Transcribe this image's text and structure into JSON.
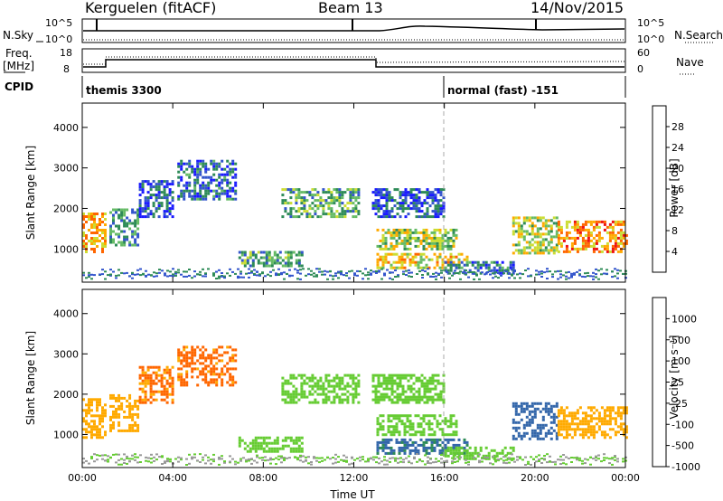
{
  "header": {
    "radar": "Kerguelen (fitACF)",
    "beam": "Beam 13",
    "date": "14/Nov/2015"
  },
  "top_panels": {
    "nsky_label": "N.Sky",
    "nsky_ticks": [
      "10^5",
      "10^0"
    ],
    "nsearch_label": "N.Search",
    "nsearch_ticks": [
      "10^5",
      "10^0"
    ],
    "freq_label": "Freq.",
    "freq_unit": "[MHz]",
    "freq_ticks": [
      "18",
      "8"
    ],
    "nave_label": "Nave",
    "nave_ticks": [
      "60",
      "0"
    ],
    "cpid_label": "CPID",
    "cpid_segments": [
      "themis 3300",
      "normal (fast) -151"
    ]
  },
  "colors": {
    "power": [
      "#1a1aff",
      "#3355cc",
      "#2e8b57",
      "#66bb66",
      "#ccdd33",
      "#ffaa00",
      "#ff6600",
      "#ee1111"
    ],
    "velocity": [
      "#ee1111",
      "#ff6600",
      "#ffaa00",
      "#c8c8c0",
      "#66cc33",
      "#2e8b57",
      "#3366aa",
      "#2222cc"
    ],
    "ground": "#999999"
  },
  "chart_data": [
    {
      "type": "heatmap",
      "title": "",
      "xlabel": "",
      "ylabel": "Slant Range [km]",
      "colorbar_label": "Power [dB]",
      "colorbar_ticks": [
        "4",
        "8",
        "12",
        "16",
        "20",
        "24",
        "28"
      ],
      "colorbar_range": [
        0,
        32
      ],
      "ylim": [
        180,
        4600
      ],
      "yticks": [
        "1000",
        "2000",
        "3000",
        "4000"
      ],
      "xlim": [
        0,
        24
      ],
      "xticks": [
        "00:00",
        "04:00",
        "08:00",
        "12:00",
        "16:00",
        "20:00",
        "00:00"
      ],
      "grid": false,
      "regions": [
        {
          "t": [
            0.0,
            1.0
          ],
          "r": [
            900,
            1900
          ],
          "v": 22
        },
        {
          "t": [
            1.2,
            2.5
          ],
          "r": [
            1100,
            2000
          ],
          "v": 10
        },
        {
          "t": [
            2.5,
            4.0
          ],
          "r": [
            1800,
            2700
          ],
          "v": 6
        },
        {
          "t": [
            4.2,
            6.8
          ],
          "r": [
            2200,
            3200
          ],
          "v": 7
        },
        {
          "t": [
            6.9,
            9.7
          ],
          "r": [
            600,
            950
          ],
          "v": 12
        },
        {
          "t": [
            8.8,
            12.2
          ],
          "r": [
            1800,
            2500
          ],
          "v": 12
        },
        {
          "t": [
            12.8,
            16.0
          ],
          "r": [
            1800,
            2500
          ],
          "v": 6
        },
        {
          "t": [
            13.0,
            16.5
          ],
          "r": [
            1000,
            1500
          ],
          "v": 16
        },
        {
          "t": [
            13.0,
            17.0
          ],
          "r": [
            500,
            900
          ],
          "v": 20
        },
        {
          "t": [
            16.0,
            19.0
          ],
          "r": [
            400,
            700
          ],
          "v": 8
        },
        {
          "t": [
            19.0,
            21.0
          ],
          "r": [
            900,
            1800
          ],
          "v": 17
        },
        {
          "t": [
            21.0,
            24.0
          ],
          "r": [
            900,
            1700
          ],
          "v": 24
        }
      ]
    },
    {
      "type": "heatmap",
      "title": "",
      "xlabel": "Time UT",
      "ylabel": "Slant Range [km]",
      "colorbar_label": "Velocity [m s⁻¹]",
      "colorbar_ticks": [
        "1000",
        "500",
        "100",
        "25",
        "-25",
        "-100",
        "-500",
        "-1000"
      ],
      "ylim": [
        180,
        4600
      ],
      "yticks": [
        "1000",
        "2000",
        "3000",
        "4000"
      ],
      "xlim": [
        0,
        24
      ],
      "xticks": [
        "00:00",
        "04:00",
        "08:00",
        "12:00",
        "16:00",
        "20:00",
        "00:00"
      ],
      "grid": false,
      "regions": [
        {
          "t": [
            0.0,
            1.0
          ],
          "r": [
            900,
            1900
          ],
          "v": -300
        },
        {
          "t": [
            1.2,
            2.5
          ],
          "r": [
            1100,
            2000
          ],
          "v": -200
        },
        {
          "t": [
            2.5,
            4.0
          ],
          "r": [
            1800,
            2700
          ],
          "v": -600
        },
        {
          "t": [
            4.2,
            6.8
          ],
          "r": [
            2200,
            3200
          ],
          "v": -700
        },
        {
          "t": [
            6.9,
            9.7
          ],
          "r": [
            600,
            950
          ],
          "v": 0
        },
        {
          "t": [
            8.8,
            12.2
          ],
          "r": [
            1800,
            2500
          ],
          "v": 0
        },
        {
          "t": [
            12.8,
            16.0
          ],
          "r": [
            1800,
            2500
          ],
          "v": 0
        },
        {
          "t": [
            13.0,
            16.5
          ],
          "r": [
            1000,
            1500
          ],
          "v": 0
        },
        {
          "t": [
            13.0,
            17.0
          ],
          "r": [
            500,
            900
          ],
          "v": 120
        },
        {
          "t": [
            16.0,
            19.0
          ],
          "r": [
            400,
            700
          ],
          "v": 0
        },
        {
          "t": [
            19.0,
            21.0
          ],
          "r": [
            900,
            1800
          ],
          "v": 300
        },
        {
          "t": [
            21.0,
            24.0
          ],
          "r": [
            900,
            1700
          ],
          "v": -200
        }
      ]
    }
  ]
}
